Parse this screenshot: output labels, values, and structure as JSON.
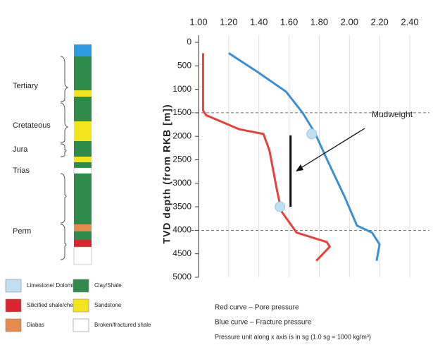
{
  "chart_data": {
    "type": "line",
    "y_label": "TVD depth (from RKB [m])",
    "xlim": [
      1.0,
      2.4
    ],
    "xticks": [
      {
        "value": 1.0,
        "label": "1.00"
      },
      {
        "value": 1.2,
        "label": "1.20"
      },
      {
        "value": 1.4,
        "label": "1.40"
      },
      {
        "value": 1.6,
        "label": "1.60"
      },
      {
        "value": 1.8,
        "label": "1.80"
      },
      {
        "value": 2.0,
        "label": "2.00"
      },
      {
        "value": 2.2,
        "label": "2.20"
      },
      {
        "value": 2.4,
        "label": "2.40"
      }
    ],
    "ylim": [
      0,
      5000
    ],
    "yticks": [
      0,
      500,
      1000,
      1500,
      2000,
      2500,
      3000,
      3500,
      4000,
      4500,
      5000
    ],
    "y_inverted": true,
    "grid": true,
    "series": [
      {
        "color": "#e8403c",
        "x": [
          1.03,
          1.03,
          1.03,
          1.05,
          1.27,
          1.43,
          1.47,
          1.52,
          1.55,
          1.65,
          1.85,
          1.87,
          1.78
        ],
        "values": [
          230,
          1000,
          1450,
          1550,
          1850,
          1950,
          2300,
          3150,
          3600,
          4050,
          4250,
          4350,
          4650
        ]
      },
      {
        "color": "#3d8fd1",
        "x": [
          1.2,
          1.4,
          1.58,
          1.69,
          1.77,
          1.86,
          1.97,
          2.05,
          2.15,
          2.2,
          2.18
        ],
        "values": [
          230,
          650,
          1050,
          1500,
          1920,
          2550,
          3300,
          3900,
          4050,
          4300,
          4650
        ]
      }
    ],
    "markers": {
      "color": "#bfe0f3",
      "x": [
        1.75,
        1.54
      ],
      "values": [
        1950,
        3500
      ]
    },
    "mudweight": {
      "label": "Mudweight",
      "color": "#111111",
      "x": [
        1.61,
        1.61
      ],
      "values": [
        1980,
        3500
      ]
    },
    "reference_lines": [
      1500,
      4000
    ],
    "notes": [
      "Red curve – Pore pressure",
      "Blue curve – Fracture pressure",
      "Pressure unit along x axis is in sg (1.0 sg = 1000 kg/m³)"
    ]
  },
  "column": {
    "periods": [
      "Tertiary",
      "Cretateous",
      "Jura",
      "Trias",
      "Perm"
    ],
    "legend": [
      {
        "label": "Limestone/ Dolomite",
        "color": "#bfe0f3"
      },
      {
        "label": "Clay/Shale",
        "color": "#2e8b4a"
      },
      {
        "label": "Silicified shale/chert",
        "color": "#d9262e"
      },
      {
        "label": "Sandstone",
        "color": "#f4e41c"
      },
      {
        "label": "Diabas",
        "color": "#e88a4a"
      },
      {
        "label": "Broken/fractured shale",
        "color": "#ffffff"
      }
    ]
  }
}
